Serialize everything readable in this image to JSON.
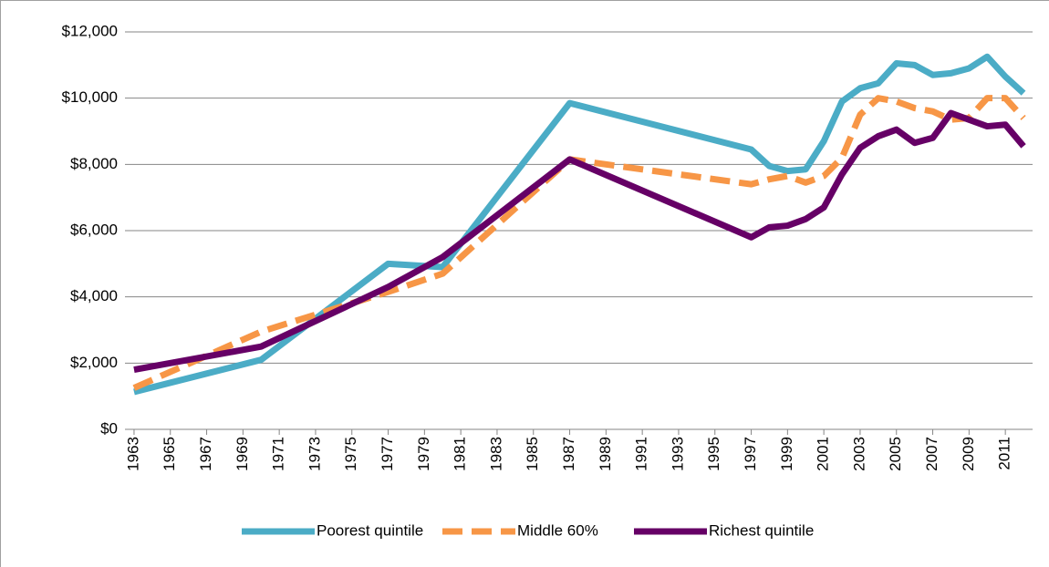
{
  "chart_data": {
    "type": "line",
    "x": [
      1963,
      1970,
      1977,
      1980,
      1987,
      1997,
      1998,
      1999,
      2000,
      2001,
      2002,
      2003,
      2004,
      2005,
      2006,
      2007,
      2008,
      2009,
      2010,
      2011,
      2012
    ],
    "series": [
      {
        "name": "Poorest quintile",
        "color": "#4bacc6",
        "dashed": false,
        "values": [
          1130,
          2100,
          5000,
          4900,
          9850,
          8450,
          7950,
          7800,
          7850,
          8700,
          9900,
          10300,
          10450,
          11050,
          11000,
          10700,
          10750,
          10900,
          11250,
          10650,
          10150
        ]
      },
      {
        "name": "Middle 60%",
        "color": "#f79646",
        "dashed": true,
        "values": [
          1250,
          2950,
          4150,
          4700,
          8150,
          7400,
          7550,
          7650,
          7450,
          7650,
          8200,
          9500,
          10000,
          9900,
          9700,
          9600,
          9350,
          9400,
          10000,
          10000,
          9400
        ]
      },
      {
        "name": "Richest quintile",
        "color": "#660066",
        "dashed": false,
        "values": [
          1800,
          2500,
          4300,
          5200,
          8150,
          5800,
          6100,
          6150,
          6350,
          6700,
          7700,
          8500,
          8850,
          9050,
          8650,
          8800,
          9550,
          9350,
          9150,
          9200,
          8550
        ]
      }
    ],
    "xlim": [
      1962.5,
      2012.5
    ],
    "xticks": [
      1963,
      1965,
      1967,
      1969,
      1971,
      1973,
      1975,
      1977,
      1979,
      1981,
      1983,
      1985,
      1987,
      1989,
      1991,
      1993,
      1995,
      1997,
      1999,
      2001,
      2003,
      2005,
      2007,
      2009,
      2011
    ],
    "ylim": [
      0,
      12000
    ],
    "yticks": [
      {
        "value": 0,
        "label": "$0"
      },
      {
        "value": 2000,
        "label": "$2,000"
      },
      {
        "value": 4000,
        "label": "$4,000"
      },
      {
        "value": 6000,
        "label": "$6,000"
      },
      {
        "value": 8000,
        "label": "$8,000"
      },
      {
        "value": 10000,
        "label": "$10,000"
      },
      {
        "value": 12000,
        "label": "$12,000"
      }
    ],
    "grid": true,
    "legend": "bottom"
  }
}
